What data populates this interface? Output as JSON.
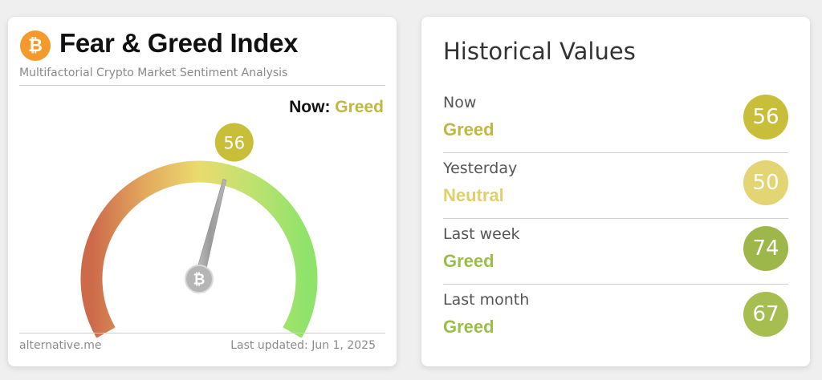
{
  "index_card": {
    "title": "Fear & Greed Index",
    "subtitle": "Multifactorial Crypto Market Sentiment Analysis",
    "logo_icon": "bitcoin-icon",
    "now_label": "Now:",
    "now_classification": "Greed",
    "gauge": {
      "value": 56,
      "value_label": "56",
      "min": 0,
      "max": 100,
      "bubble_color": "#c8be3a",
      "needle_color": "#9e9e9e",
      "hub_icon": "bitcoin-icon",
      "gradient_colors": [
        "#cc6a4a",
        "#e3a95e",
        "#eadb6e",
        "#bde26f",
        "#8fe36a"
      ]
    },
    "footer_source": "alternative.me",
    "footer_updated": "Last updated: Jun 1, 2025"
  },
  "history_card": {
    "title": "Historical Values",
    "rows": [
      {
        "label": "Now",
        "classification": "Greed",
        "value": "56",
        "class_color": "#c2b740",
        "bubble_color": "#c8be3a"
      },
      {
        "label": "Yesterday",
        "classification": "Neutral",
        "value": "50",
        "class_color": "#e0cf6a",
        "bubble_color": "#e3d474"
      },
      {
        "label": "Last week",
        "classification": "Greed",
        "value": "74",
        "class_color": "#9bbe4b",
        "bubble_color": "#9db74b"
      },
      {
        "label": "Last month",
        "classification": "Greed",
        "value": "67",
        "class_color": "#9bbe4b",
        "bubble_color": "#a6bd50"
      }
    ]
  }
}
